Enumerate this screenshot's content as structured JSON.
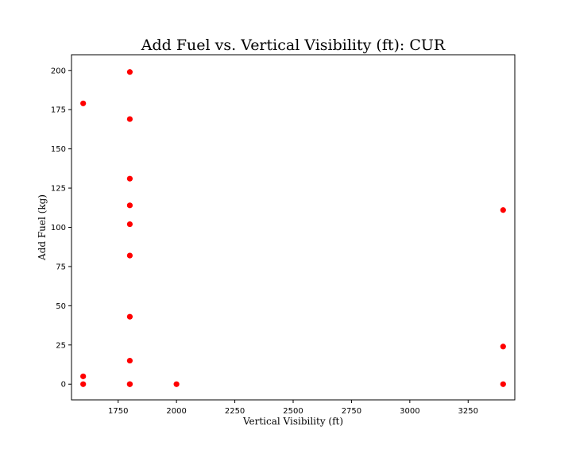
{
  "chart_data": {
    "type": "scatter",
    "title": "Add Fuel vs. Vertical Visibility (ft): CUR",
    "xlabel": "Vertical Visibility (ft)",
    "ylabel": "Add Fuel (kg)",
    "xlim": [
      1550,
      3450
    ],
    "ylim": [
      -10,
      210
    ],
    "xticks": [
      1750,
      2000,
      2250,
      2500,
      2750,
      3000,
      3250
    ],
    "yticks": [
      0,
      25,
      50,
      75,
      100,
      125,
      150,
      175,
      200
    ],
    "grid": false,
    "marker_color": "#ff0000",
    "points": [
      {
        "x": 1600,
        "y": 179
      },
      {
        "x": 1600,
        "y": 5
      },
      {
        "x": 1600,
        "y": 0
      },
      {
        "x": 1800,
        "y": 199
      },
      {
        "x": 1800,
        "y": 169
      },
      {
        "x": 1800,
        "y": 131
      },
      {
        "x": 1800,
        "y": 114
      },
      {
        "x": 1800,
        "y": 102
      },
      {
        "x": 1800,
        "y": 82
      },
      {
        "x": 1800,
        "y": 43
      },
      {
        "x": 1800,
        "y": 15
      },
      {
        "x": 1800,
        "y": 0
      },
      {
        "x": 1800,
        "y": 0
      },
      {
        "x": 2000,
        "y": 0
      },
      {
        "x": 3400,
        "y": 111
      },
      {
        "x": 3400,
        "y": 24
      },
      {
        "x": 3400,
        "y": 0
      }
    ]
  }
}
